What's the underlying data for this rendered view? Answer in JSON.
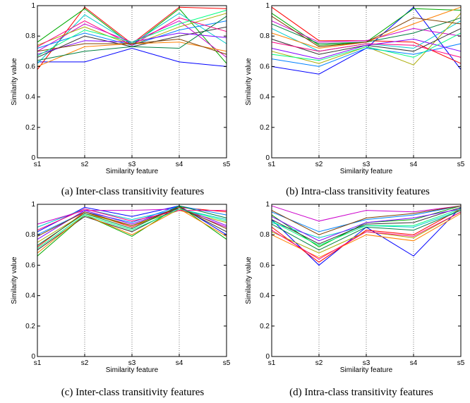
{
  "chart_data": [
    {
      "type": "line",
      "caption": "(a)  Inter-class transitivity features",
      "categories": [
        "s1",
        "s2",
        "s3",
        "s4",
        "s5"
      ],
      "xlabel": "Similarity feature",
      "ylabel": "Similarity value",
      "ylim": [
        0,
        1
      ],
      "yticks": [
        "0",
        "0.2",
        "0.4",
        "0.6",
        "0.8",
        "1"
      ],
      "grid": "vertical-dotted",
      "series": [
        {
          "color": "#0000ff",
          "values": [
            0.63,
            0.63,
            0.72,
            0.63,
            0.6
          ]
        },
        {
          "color": "#ff0000",
          "values": [
            0.58,
            0.99,
            0.75,
            0.99,
            0.98
          ]
        },
        {
          "color": "#00aa00",
          "values": [
            0.76,
            0.98,
            0.74,
            0.98,
            0.62
          ]
        },
        {
          "color": "#00cccc",
          "values": [
            0.62,
            0.94,
            0.75,
            0.95,
            0.75
          ]
        },
        {
          "color": "#cc00cc",
          "values": [
            0.7,
            0.88,
            0.76,
            0.9,
            0.66
          ]
        },
        {
          "color": "#aaaa00",
          "values": [
            0.74,
            0.86,
            0.74,
            0.86,
            0.95
          ]
        },
        {
          "color": "#333333",
          "values": [
            0.66,
            0.8,
            0.73,
            0.8,
            0.86
          ]
        },
        {
          "color": "#0080ff",
          "values": [
            0.72,
            0.82,
            0.74,
            0.84,
            0.9
          ]
        },
        {
          "color": "#ff8000",
          "values": [
            0.6,
            0.73,
            0.75,
            0.76,
            0.7
          ]
        },
        {
          "color": "#8000ff",
          "values": [
            0.68,
            0.77,
            0.76,
            0.82,
            0.79
          ]
        },
        {
          "color": "#008040",
          "values": [
            0.64,
            0.7,
            0.73,
            0.72,
            0.93
          ]
        },
        {
          "color": "#ff0080",
          "values": [
            0.73,
            0.9,
            0.74,
            0.92,
            0.83
          ]
        },
        {
          "color": "#804000",
          "values": [
            0.7,
            0.75,
            0.75,
            0.78,
            0.68
          ]
        },
        {
          "color": "#00ff80",
          "values": [
            0.67,
            0.84,
            0.76,
            0.88,
            0.97
          ]
        }
      ]
    },
    {
      "type": "line",
      "caption": "(b)  Intra-class transitivity features",
      "categories": [
        "s1",
        "s2",
        "s3",
        "s4",
        "s5"
      ],
      "xlabel": "Similarity feature",
      "ylabel": "Similarity value",
      "ylim": [
        0,
        1
      ],
      "yticks": [
        "0",
        "0.2",
        "0.4",
        "0.6",
        "0.8",
        "1"
      ],
      "grid": "vertical-dotted",
      "series": [
        {
          "color": "#0000ff",
          "values": [
            0.6,
            0.55,
            0.72,
            0.99,
            0.58
          ]
        },
        {
          "color": "#ff0000",
          "values": [
            0.99,
            0.77,
            0.77,
            0.76,
            0.62
          ]
        },
        {
          "color": "#00aa00",
          "values": [
            0.95,
            0.74,
            0.76,
            0.98,
            0.97
          ]
        },
        {
          "color": "#00cccc",
          "values": [
            0.85,
            0.7,
            0.75,
            0.72,
            0.9
          ]
        },
        {
          "color": "#cc00cc",
          "values": [
            0.9,
            0.76,
            0.77,
            0.85,
            0.8
          ]
        },
        {
          "color": "#aaaa00",
          "values": [
            0.7,
            0.62,
            0.73,
            0.61,
            0.95
          ]
        },
        {
          "color": "#333333",
          "values": [
            0.78,
            0.68,
            0.74,
            0.7,
            0.85
          ]
        },
        {
          "color": "#0080ff",
          "values": [
            0.65,
            0.6,
            0.72,
            0.68,
            0.75
          ]
        },
        {
          "color": "#ff8000",
          "values": [
            0.82,
            0.72,
            0.76,
            0.88,
            0.99
          ]
        },
        {
          "color": "#8000ff",
          "values": [
            0.72,
            0.65,
            0.74,
            0.78,
            0.7
          ]
        },
        {
          "color": "#008040",
          "values": [
            0.88,
            0.75,
            0.76,
            0.82,
            0.92
          ]
        },
        {
          "color": "#ff0080",
          "values": [
            0.76,
            0.7,
            0.75,
            0.74,
            0.66
          ]
        },
        {
          "color": "#804000",
          "values": [
            0.93,
            0.73,
            0.76,
            0.92,
            0.88
          ]
        },
        {
          "color": "#00ff80",
          "values": [
            0.68,
            0.64,
            0.73,
            0.66,
            0.82
          ]
        }
      ]
    },
    {
      "type": "line",
      "caption": "(c)  Inter-class transitivity features",
      "categories": [
        "s1",
        "s2",
        "s3",
        "s4",
        "s5"
      ],
      "xlabel": "Similarity feature",
      "ylabel": "Similarity value",
      "ylim": [
        0,
        1
      ],
      "yticks": [
        "0",
        "0.2",
        "0.4",
        "0.6",
        "0.8",
        "1"
      ],
      "grid": "vertical-dotted",
      "series": [
        {
          "color": "#0000ff",
          "values": [
            0.82,
            0.98,
            0.92,
            0.99,
            0.8
          ]
        },
        {
          "color": "#ff0000",
          "values": [
            0.72,
            0.95,
            0.85,
            0.98,
            0.95
          ]
        },
        {
          "color": "#00aa00",
          "values": [
            0.66,
            0.93,
            0.79,
            0.99,
            0.77
          ]
        },
        {
          "color": "#00cccc",
          "values": [
            0.85,
            0.97,
            0.9,
            0.97,
            0.9
          ]
        },
        {
          "color": "#cc00cc",
          "values": [
            0.87,
            0.96,
            0.96,
            0.97,
            0.85
          ]
        },
        {
          "color": "#aaaa00",
          "values": [
            0.75,
            0.94,
            0.86,
            0.96,
            0.88
          ]
        },
        {
          "color": "#333333",
          "values": [
            0.7,
            0.92,
            0.82,
            0.98,
            0.82
          ]
        },
        {
          "color": "#0080ff",
          "values": [
            0.8,
            0.95,
            0.88,
            0.99,
            0.93
          ]
        },
        {
          "color": "#ff8000",
          "values": [
            0.68,
            0.93,
            0.8,
            0.97,
            0.79
          ]
        },
        {
          "color": "#8000ff",
          "values": [
            0.77,
            0.96,
            0.87,
            0.98,
            0.86
          ]
        },
        {
          "color": "#008040",
          "values": [
            0.73,
            0.94,
            0.84,
            0.99,
            0.91
          ]
        },
        {
          "color": "#ff0080",
          "values": [
            0.83,
            0.97,
            0.89,
            0.96,
            0.96
          ]
        },
        {
          "color": "#804000",
          "values": [
            0.79,
            0.95,
            0.86,
            0.98,
            0.84
          ]
        },
        {
          "color": "#00ff80",
          "values": [
            0.71,
            0.93,
            0.83,
            0.97,
            0.89
          ]
        }
      ]
    },
    {
      "type": "line",
      "caption": "(d)  Intra-class transitivity features",
      "categories": [
        "s1",
        "s2",
        "s3",
        "s4",
        "s5"
      ],
      "xlabel": "Similarity feature",
      "ylabel": "Similarity value",
      "ylim": [
        0,
        1
      ],
      "yticks": [
        "0",
        "0.2",
        "0.4",
        "0.6",
        "0.8",
        "1"
      ],
      "grid": "vertical-dotted",
      "series": [
        {
          "color": "#0000ff",
          "values": [
            0.9,
            0.6,
            0.85,
            0.66,
            0.98
          ]
        },
        {
          "color": "#ff0000",
          "values": [
            0.85,
            0.62,
            0.83,
            0.8,
            0.97
          ]
        },
        {
          "color": "#00aa00",
          "values": [
            0.93,
            0.72,
            0.88,
            0.9,
            0.99
          ]
        },
        {
          "color": "#00cccc",
          "values": [
            0.88,
            0.78,
            0.86,
            0.85,
            0.96
          ]
        },
        {
          "color": "#cc00cc",
          "values": [
            0.99,
            0.89,
            0.96,
            0.95,
            0.99
          ]
        },
        {
          "color": "#aaaa00",
          "values": [
            0.82,
            0.68,
            0.82,
            0.78,
            0.95
          ]
        },
        {
          "color": "#333333",
          "values": [
            0.9,
            0.74,
            0.87,
            0.88,
            0.98
          ]
        },
        {
          "color": "#0080ff",
          "values": [
            0.95,
            0.82,
            0.9,
            0.93,
            0.99
          ]
        },
        {
          "color": "#ff8000",
          "values": [
            0.8,
            0.65,
            0.8,
            0.76,
            0.94
          ]
        },
        {
          "color": "#8000ff",
          "values": [
            0.92,
            0.76,
            0.88,
            0.91,
            0.97
          ]
        },
        {
          "color": "#008040",
          "values": [
            0.87,
            0.7,
            0.85,
            0.83,
            0.96
          ]
        },
        {
          "color": "#ff0080",
          "values": [
            0.83,
            0.64,
            0.82,
            0.79,
            0.95
          ]
        },
        {
          "color": "#804000",
          "values": [
            0.96,
            0.8,
            0.91,
            0.94,
            0.99
          ]
        },
        {
          "color": "#00ff80",
          "values": [
            0.89,
            0.73,
            0.86,
            0.86,
            0.97
          ]
        }
      ]
    }
  ]
}
